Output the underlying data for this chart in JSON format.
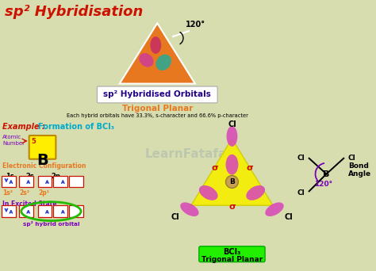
{
  "bg_color": "#d8ddb0",
  "title": "sp² Hybridisation",
  "title_color": "#cc1100",
  "title_fontsize": 13,
  "subtitle_box": "sp² Hybridised Orbitals",
  "trigonal_planar": "Trigonal Planar",
  "description": "Each hybrid orbitals have 33.3%, s-character and 66.6% p-character",
  "example_label": "Example : ",
  "formation_label": "Formation of BCl₃",
  "atomic_number_label": "Atomic\nNumber",
  "atom_symbol": "B",
  "atom_number": "5",
  "elec_config_label": "Electronic Configuration",
  "excited_state": "In Excited State",
  "sp2_hybrid": "sp² hybrid orbital",
  "sigma_label": "σ",
  "angle_120": "120°",
  "bond_angle": "Bond\nAngle",
  "trigonal_planar_bcl3": "Trigonal Planar",
  "bcl3_label": "BCl₃",
  "orange_color": "#e87820",
  "yellow_color": "#f5ee00",
  "pink_color": "#e060c0",
  "green_color": "#22bb00",
  "cyan_color": "#00aacc",
  "purple_color": "#7700bb",
  "red_color": "#cc1100",
  "blue_color": "#3344cc",
  "dark_text": "#111111",
  "box_text_color": "#220088",
  "watermark": "LearnFatafat"
}
